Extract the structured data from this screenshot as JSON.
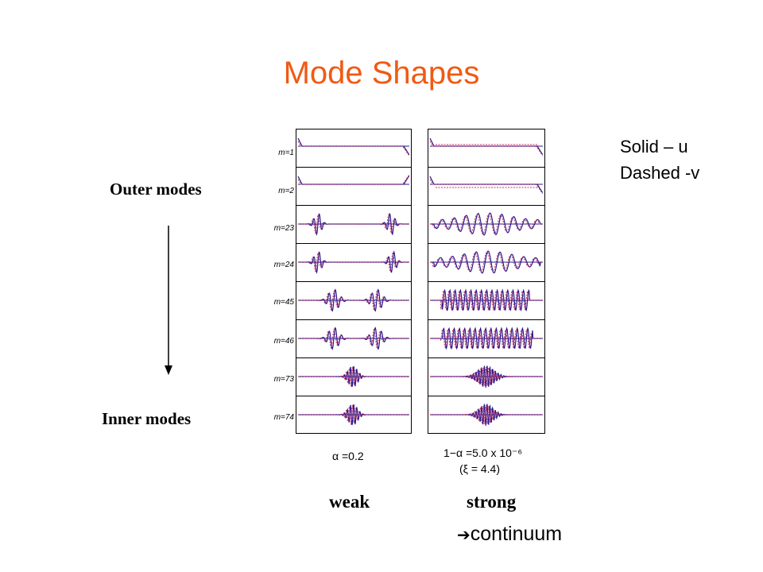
{
  "title": "Mode Shapes",
  "legend": {
    "solid": "Solid – u",
    "dashed": "Dashed -v"
  },
  "side_labels": {
    "outer": "Outer modes",
    "inner": "Inner modes"
  },
  "mode_labels": [
    "m=1",
    "m=2",
    "m=23",
    "m=24",
    "m=45",
    "m=46",
    "m=73",
    "m=74"
  ],
  "columns": {
    "weak": {
      "caption": "α =0.2",
      "label": "weak"
    },
    "strong": {
      "caption": "1−α =5.0 x 10⁻⁶",
      "caption2": "(ξ = 4.4)",
      "label": "strong"
    }
  },
  "continuum": "continuum",
  "colors": {
    "title": "#f05a14",
    "curve_solid": "#2a1a8a",
    "curve_dashed": "#c0306a",
    "text": "#000000"
  },
  "icons": {
    "direction_arrow": "down-arrow-icon",
    "continuum_arrow": "right-arrow-icon"
  }
}
